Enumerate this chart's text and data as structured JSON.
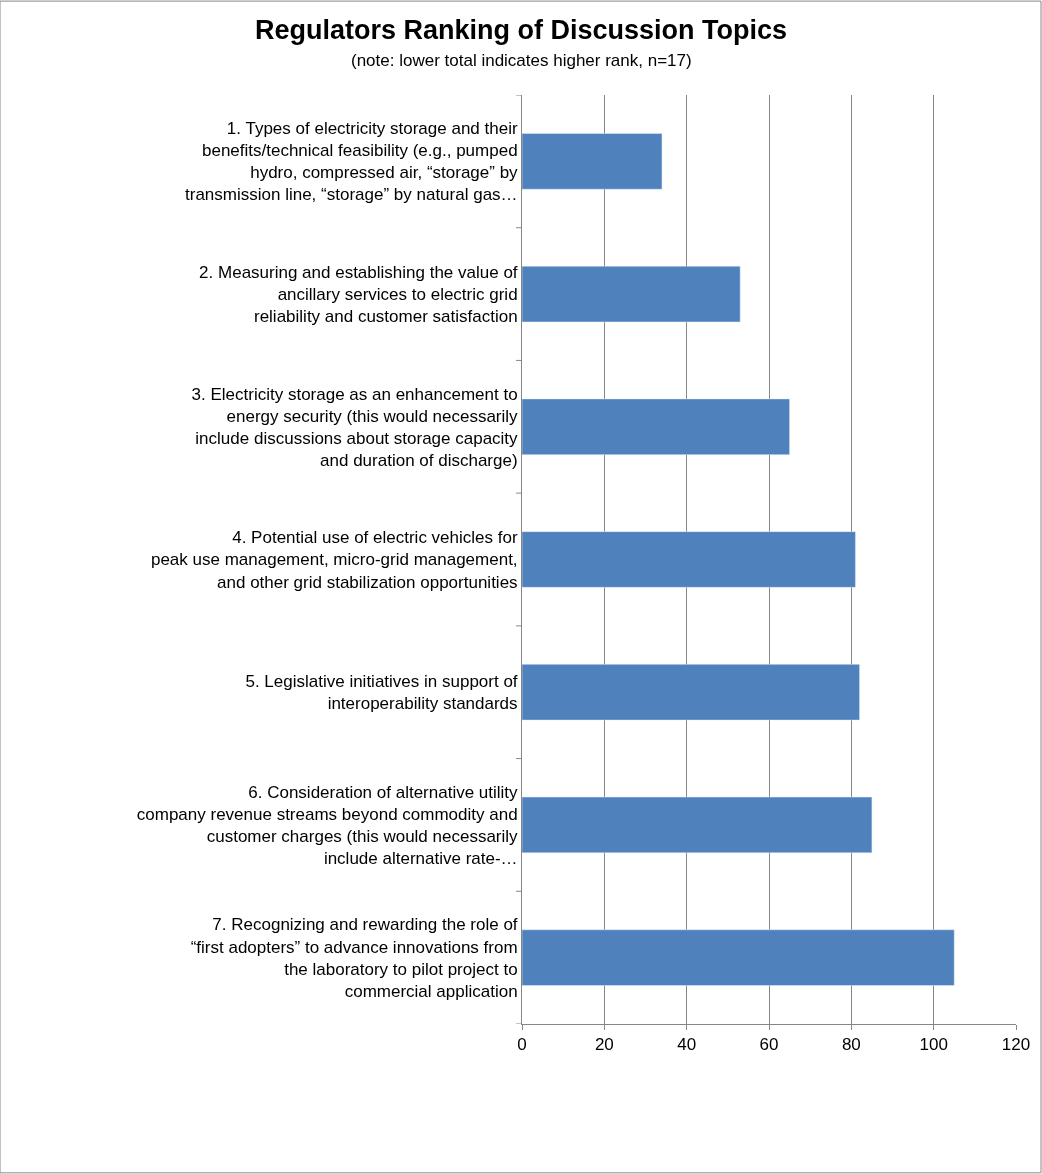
{
  "chart_data": {
    "type": "bar",
    "orientation": "horizontal",
    "title": "Regulators Ranking of Discussion Topics",
    "subtitle": "(note: lower total indicates higher rank, n=17)",
    "categories": [
      "1. Types of electricity storage and their benefits/technical feasibility (e.g., pumped hydro, compressed air, “storage” by transmission line, “storage” by natural gas…",
      "2. Measuring and establishing the value of ancillary services to electric grid reliability and customer satisfaction",
      "3. Electricity storage as an enhancement to energy security (this would necessarily include discussions about storage capacity and duration of discharge)",
      "4. Potential use of electric vehicles for peak use management, micro-grid management, and other grid stabilization opportunities",
      "5. Legislative initiatives in support of interoperability standards",
      "6. Consideration of alternative utility company revenue streams beyond commodity and customer charges (this would necessarily include alternative rate-…",
      "7. Recognizing and rewarding the role of “first adopters” to advance innovations from the laboratory to pilot project to commercial application"
    ],
    "values": [
      34,
      53,
      65,
      81,
      82,
      85,
      105
    ],
    "color": "#4f81bd",
    "xlim": [
      0,
      120
    ],
    "xticks": [
      0,
      20,
      40,
      60,
      80,
      100,
      120
    ],
    "grid": "x",
    "legend": false
  }
}
